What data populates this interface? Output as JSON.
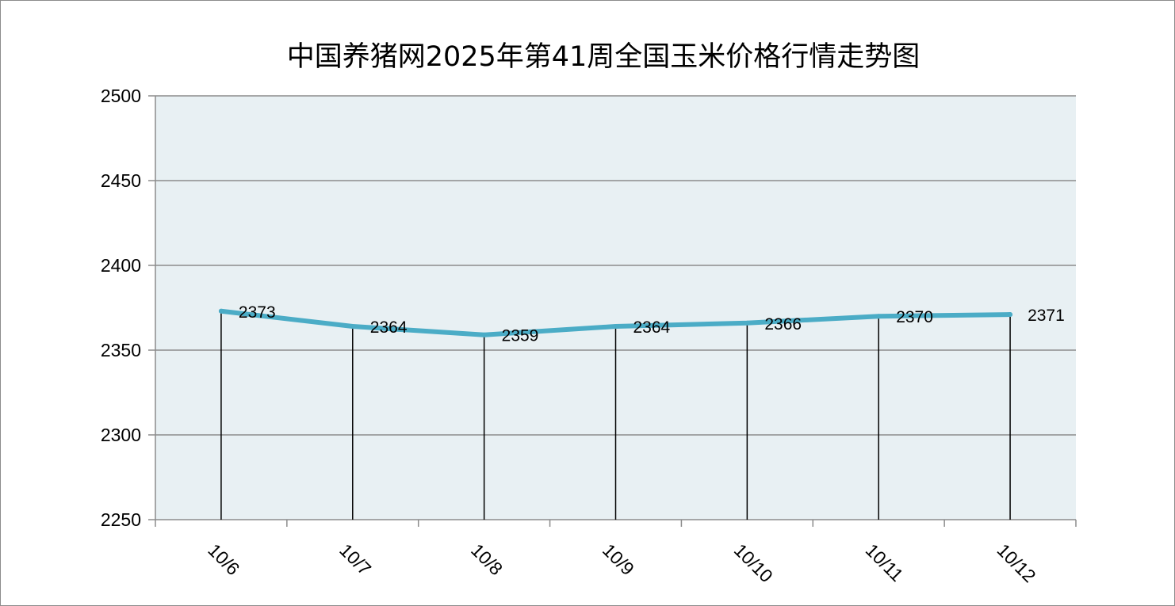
{
  "chart_data": {
    "type": "line",
    "title": "中国养猪网2025年第41周全国玉米价格行情走势图",
    "xlabel": "",
    "ylabel": "",
    "categories": [
      "10/6",
      "10/7",
      "10/8",
      "10/9",
      "10/10",
      "10/11",
      "10/12"
    ],
    "series": [
      {
        "values": [
          2373,
          2364,
          2359,
          2364,
          2366,
          2370,
          2371
        ],
        "color": "#4bacc6"
      }
    ],
    "data_labels": [
      "2373",
      "2364",
      "2359",
      "2364",
      "2366",
      "2370",
      "2371"
    ],
    "ylim": [
      2250,
      2500
    ],
    "yticks": [
      2250,
      2300,
      2350,
      2400,
      2450,
      2500
    ],
    "grid": true,
    "drop_lines": true,
    "legend": "none",
    "colors": {
      "plot_background": "#e8f0f3",
      "gridline": "#8c8c8c",
      "drop_line": "#000000"
    }
  }
}
